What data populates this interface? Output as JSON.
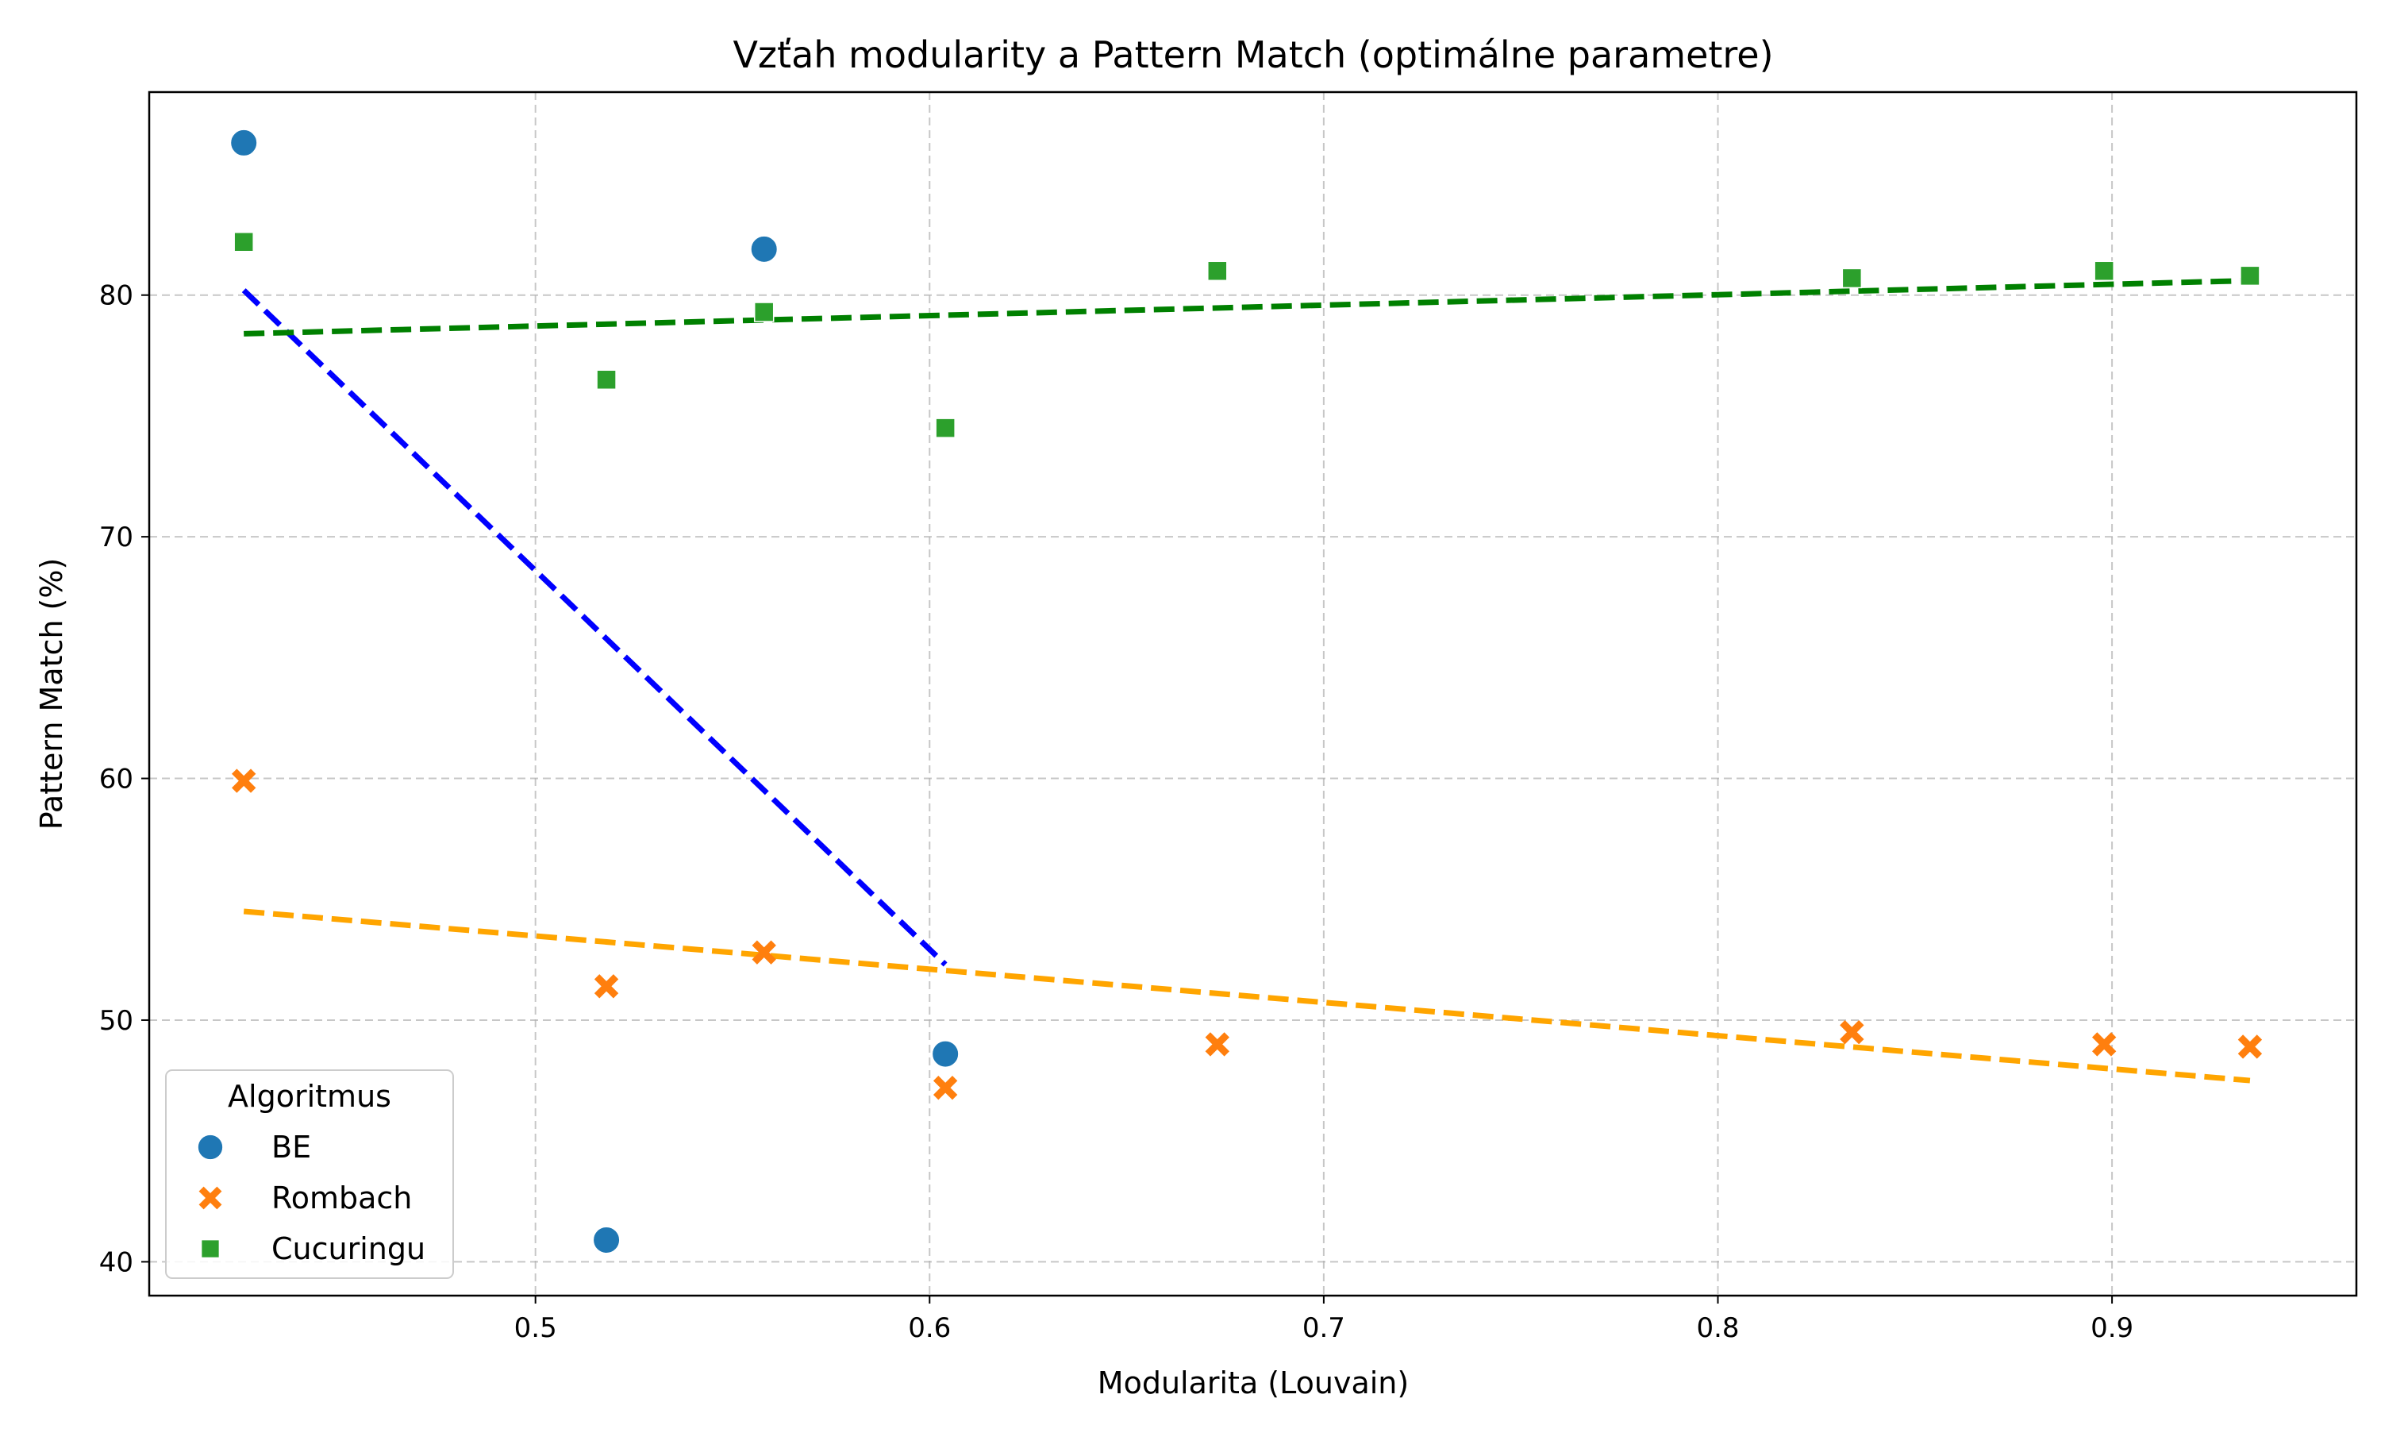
{
  "chart_data": {
    "type": "scatter",
    "title": "Vzťah modularity a Pattern Match (optimálne parametre)",
    "xlabel": "Modularita (Louvain)",
    "ylabel": "Pattern Match (%)",
    "xlim": [
      0.402,
      0.962
    ],
    "ylim": [
      38.6,
      88.4
    ],
    "xticks": [
      0.5,
      0.6,
      0.7,
      0.8,
      0.9
    ],
    "xtick_labels": [
      "0.5",
      "0.6",
      "0.7",
      "0.8",
      "0.9"
    ],
    "yticks": [
      40,
      50,
      60,
      70,
      80
    ],
    "ytick_labels": [
      "40",
      "50",
      "60",
      "70",
      "80"
    ],
    "grid": true,
    "legend": {
      "title": "Algoritmus",
      "placement": "bottom-left"
    },
    "series": [
      {
        "name": "BE",
        "marker": "circle",
        "color": "#1f77b4",
        "points": [
          {
            "x": 0.426,
            "y": 86.3
          },
          {
            "x": 0.518,
            "y": 40.9
          },
          {
            "x": 0.558,
            "y": 81.9
          },
          {
            "x": 0.604,
            "y": 48.6
          }
        ],
        "trendline": {
          "color": "#0000ff",
          "x": [
            0.426,
            0.604
          ],
          "y": [
            80.2,
            52.3
          ]
        }
      },
      {
        "name": "Rombach",
        "marker": "x",
        "color": "#ff7f0e",
        "points": [
          {
            "x": 0.426,
            "y": 59.9
          },
          {
            "x": 0.518,
            "y": 51.4
          },
          {
            "x": 0.558,
            "y": 52.8
          },
          {
            "x": 0.604,
            "y": 47.2
          },
          {
            "x": 0.673,
            "y": 49.0
          },
          {
            "x": 0.834,
            "y": 49.5
          },
          {
            "x": 0.898,
            "y": 49.0
          },
          {
            "x": 0.935,
            "y": 48.9
          }
        ],
        "trendline": {
          "color": "#ffa500",
          "x": [
            0.426,
            0.935
          ],
          "y": [
            54.5,
            47.5
          ]
        }
      },
      {
        "name": "Cucuringu",
        "marker": "square",
        "color": "#2ca02c",
        "points": [
          {
            "x": 0.426,
            "y": 82.2
          },
          {
            "x": 0.518,
            "y": 76.5
          },
          {
            "x": 0.558,
            "y": 79.3
          },
          {
            "x": 0.604,
            "y": 74.5
          },
          {
            "x": 0.673,
            "y": 81.0
          },
          {
            "x": 0.834,
            "y": 80.7
          },
          {
            "x": 0.898,
            "y": 81.0
          },
          {
            "x": 0.935,
            "y": 80.8
          }
        ],
        "trendline": {
          "color": "#008000",
          "x": [
            0.426,
            0.935
          ],
          "y": [
            78.4,
            80.6
          ]
        }
      }
    ]
  }
}
